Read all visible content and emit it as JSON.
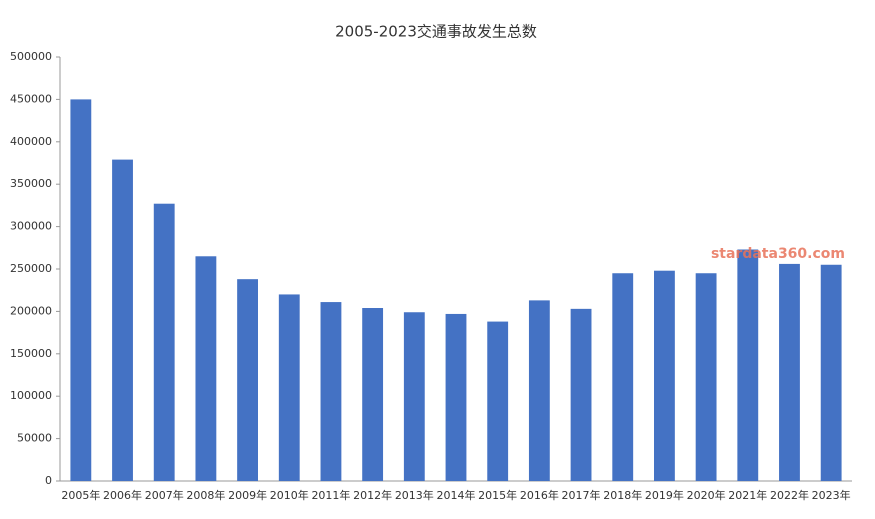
{
  "chart_data": {
    "type": "bar",
    "title": "2005-2023交通事故发生总数",
    "categories": [
      "2005年",
      "2006年",
      "2007年",
      "2008年",
      "2009年",
      "2010年",
      "2011年",
      "2012年",
      "2013年",
      "2014年",
      "2015年",
      "2016年",
      "2017年",
      "2018年",
      "2019年",
      "2020年",
      "2021年",
      "2022年",
      "2023年"
    ],
    "values": [
      450000,
      379000,
      327000,
      265000,
      238000,
      220000,
      211000,
      204000,
      199000,
      197000,
      188000,
      213000,
      203000,
      245000,
      248000,
      245000,
      273000,
      256000,
      255000
    ],
    "color": "#4472c4",
    "ylim": [
      0,
      500000
    ],
    "yticks": [
      0,
      50000,
      100000,
      150000,
      200000,
      250000,
      300000,
      350000,
      400000,
      450000,
      500000
    ],
    "watermark": "stardata360.com"
  }
}
